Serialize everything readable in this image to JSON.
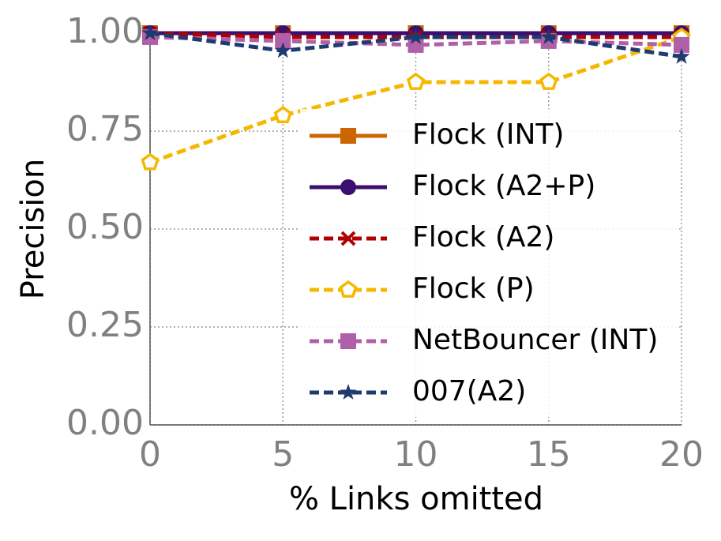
{
  "chart_data": {
    "type": "line",
    "x_label": "% Links omitted",
    "y_label": "Precision",
    "x": [
      0,
      5,
      10,
      15,
      20
    ],
    "xlim": [
      0,
      20
    ],
    "xticks": [
      0,
      5,
      10,
      15,
      20
    ],
    "ylim": [
      0,
      1
    ],
    "yticks": [
      {
        "value": 0,
        "label": "0.00"
      },
      {
        "value": 0.25,
        "label": "0.25"
      },
      {
        "value": 0.5,
        "label": "0.50"
      },
      {
        "value": 0.75,
        "label": "0.75"
      },
      {
        "value": 1,
        "label": "1.00"
      }
    ],
    "grid": true,
    "series": [
      {
        "name": "Flock (INT)",
        "color": "#cc6600",
        "dashed": false,
        "marker": "square",
        "values": [
          1.0,
          1.0,
          1.0,
          1.0,
          1.0
        ]
      },
      {
        "name": "Flock (A2+P)",
        "color": "#3b0f70",
        "dashed": false,
        "marker": "circle",
        "values": [
          1.0,
          1.0,
          1.0,
          1.0,
          1.0
        ]
      },
      {
        "name": "Flock (A2)",
        "color": "#b00000",
        "dashed": true,
        "marker": "x",
        "values": [
          1.0,
          0.99,
          0.99,
          0.99,
          0.99
        ]
      },
      {
        "name": "Flock (P)",
        "color": "#f5b800",
        "dashed": true,
        "marker": "pentagon",
        "values": [
          0.67,
          0.79,
          0.875,
          0.875,
          0.99
        ]
      },
      {
        "name": "NetBouncer (INT)",
        "color": "#b060a8",
        "dashed": true,
        "marker": "square",
        "values": [
          0.99,
          0.98,
          0.97,
          0.98,
          0.97
        ]
      },
      {
        "name": "007(A2)",
        "color": "#1f3a6e",
        "dashed": true,
        "marker": "star",
        "values": [
          1.0,
          0.955,
          0.99,
          0.99,
          0.94
        ]
      }
    ]
  }
}
